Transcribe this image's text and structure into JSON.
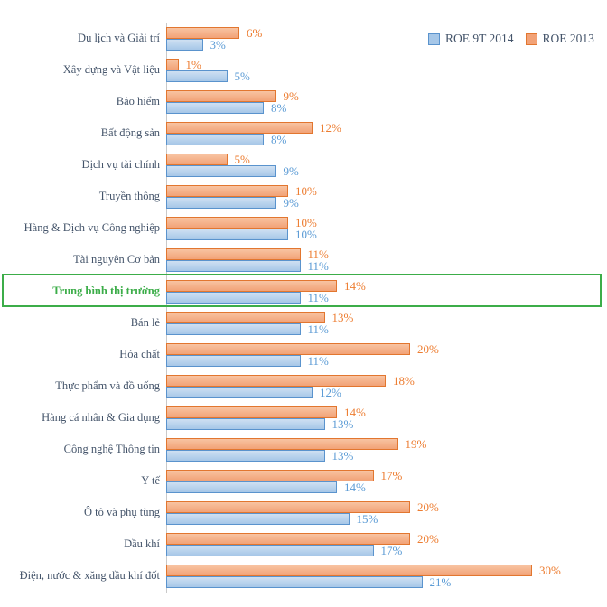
{
  "chart_data": {
    "type": "bar",
    "orientation": "horizontal",
    "categories": [
      "Du lịch và Giải trí",
      "Xây dựng và Vật liệu",
      "Bảo hiểm",
      "Bất động sản",
      "Dịch vụ tài chính",
      "Truyền thông",
      "Hàng & Dịch vụ Công nghiệp",
      "Tài nguyên Cơ bản",
      "Trung bình thị trường",
      "Bán lẻ",
      "Hóa chất",
      "Thực phẩm và đồ uống",
      "Hàng cá nhân & Gia dụng",
      "Công nghệ Thông tin",
      "Y tế",
      "Ô tô và phụ tùng",
      "Dầu khí",
      "Điện, nước & xăng dầu khí đốt"
    ],
    "series": [
      {
        "name": "ROE 9T 2014",
        "values": [
          3,
          5,
          8,
          8,
          9,
          9,
          10,
          11,
          11,
          11,
          11,
          12,
          13,
          13,
          14,
          15,
          17,
          21
        ]
      },
      {
        "name": "ROE 2013",
        "values": [
          6,
          1,
          9,
          12,
          5,
          10,
          10,
          11,
          14,
          13,
          20,
          18,
          14,
          19,
          17,
          20,
          20,
          30
        ]
      }
    ],
    "value_suffix": "%",
    "highlight": {
      "category": "Trung bình thị trường",
      "index": 8
    },
    "xlim": [
      0,
      32
    ],
    "grid": false,
    "legend_position": "top-right",
    "colors": {
      "blue_border": "#5a93cd",
      "blue_fill_top": "#cfe0f2",
      "blue_fill_bottom": "#a6c7e8",
      "blue_value_label": "#5B9BD5",
      "orange_border": "#e2762f",
      "orange_fill_top": "#f8c3a2",
      "orange_fill_bottom": "#f2a277",
      "orange_value_label": "#ED7D31",
      "category_label": "#44546A",
      "legend_text": "#44546A",
      "highlight_green": "#3CAD49",
      "axis_line": "#c9c9c9"
    }
  }
}
